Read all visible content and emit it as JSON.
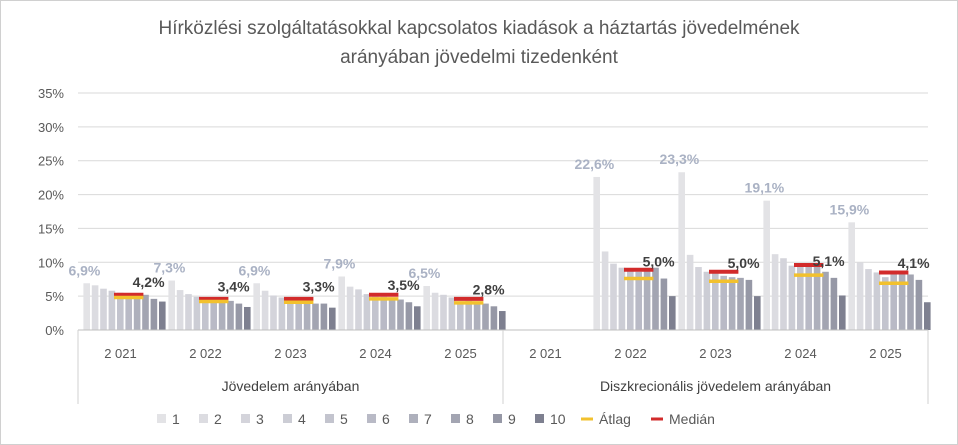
{
  "chart_data": {
    "type": "bar",
    "title_lines": [
      "Hírközlési  szolgáltatásokkal kapcsolatos kiadások a háztartás jövedelmének",
      "arányában jövedelmi tizedenként"
    ],
    "y_ticks": [
      "0%",
      "5%",
      "10%",
      "15%",
      "20%",
      "25%",
      "30%",
      "35%"
    ],
    "ylim": [
      0,
      35
    ],
    "groups": [
      {
        "label": "Jövedelem arányában",
        "years": [
          {
            "year": "2 021",
            "deciles": [
              6.9,
              6.6,
              6.1,
              5.8,
              5.5,
              5.2,
              5.0,
              5.2,
              4.6,
              4.2
            ],
            "avg": 4.8,
            "median": 5.2,
            "first_label": "6,9%",
            "last_label": "4,2%"
          },
          {
            "year": "2 022",
            "deciles": [
              7.3,
              5.9,
              5.3,
              4.9,
              4.6,
              4.5,
              4.0,
              4.3,
              3.9,
              3.4
            ],
            "avg": 4.2,
            "median": 4.6,
            "first_label": "7,3%",
            "last_label": "3,4%"
          },
          {
            "year": "2 023",
            "deciles": [
              6.9,
              5.8,
              5.1,
              4.8,
              4.2,
              4.3,
              4.0,
              3.9,
              3.9,
              3.3
            ],
            "avg": 4.1,
            "median": 4.6,
            "first_label": "6,9%",
            "last_label": "3,3%"
          },
          {
            "year": "2 024",
            "deciles": [
              7.9,
              6.4,
              6.0,
              5.3,
              4.9,
              4.9,
              4.6,
              4.5,
              4.1,
              3.5
            ],
            "avg": 4.6,
            "median": 5.2,
            "first_label": "7,9%",
            "last_label": "3,5%"
          },
          {
            "year": "2 025",
            "deciles": [
              6.5,
              5.5,
              5.2,
              4.8,
              4.0,
              4.3,
              3.9,
              3.9,
              3.5,
              2.8
            ],
            "avg": 4.0,
            "median": 4.6,
            "first_label": "6,5%",
            "last_label": "2,8%"
          }
        ]
      },
      {
        "label": "Diszkrecionális jövedelem arányában",
        "years": [
          {
            "year": "2 021",
            "deciles": [],
            "avg": null,
            "median": null,
            "first_label": "",
            "last_label": ""
          },
          {
            "year": "2 022",
            "deciles": [
              22.6,
              11.6,
              9.8,
              9.2,
              8.8,
              8.6,
              8.9,
              9.2,
              7.6,
              5.0
            ],
            "avg": 7.6,
            "median": 8.9,
            "first_label": "22,6%",
            "last_label": "5,0%"
          },
          {
            "year": "2 023",
            "deciles": [
              23.3,
              11.1,
              9.3,
              8.6,
              8.4,
              8.0,
              7.8,
              7.7,
              7.4,
              5.0
            ],
            "avg": 7.2,
            "median": 8.6,
            "first_label": "23,3%",
            "last_label": "5,0%"
          },
          {
            "year": "2 024",
            "deciles": [
              19.1,
              11.2,
              10.6,
              9.5,
              9.3,
              9.7,
              9.7,
              8.6,
              7.7,
              5.1
            ],
            "avg": 8.1,
            "median": 9.6,
            "first_label": "19,1%",
            "last_label": "5,1%"
          },
          {
            "year": "2 025",
            "deciles": [
              15.9,
              10.0,
              9.0,
              8.5,
              7.8,
              8.5,
              8.5,
              8.2,
              7.4,
              4.1
            ],
            "avg": 6.9,
            "median": 8.5,
            "first_label": "15,9%",
            "last_label": "4,1%"
          }
        ]
      }
    ],
    "legend": {
      "deciles": [
        "1",
        "2",
        "3",
        "4",
        "5",
        "6",
        "7",
        "8",
        "9",
        "10"
      ],
      "avg": "Átlag",
      "median": "Medián",
      "placement": "bottom"
    },
    "colors": {
      "deciles": [
        "#e3e3e6",
        "#dcdce1",
        "#d4d4db",
        "#cccdd5",
        "#c3c4ce",
        "#b9bac6",
        "#aeb0bc",
        "#a3a5b2",
        "#9698a6",
        "#7e8090"
      ],
      "avg": "#f2c12e",
      "median": "#d22b2b",
      "first_label": "#aab2c4",
      "last_label": "#404040",
      "grid": "#d9d9d9"
    }
  }
}
